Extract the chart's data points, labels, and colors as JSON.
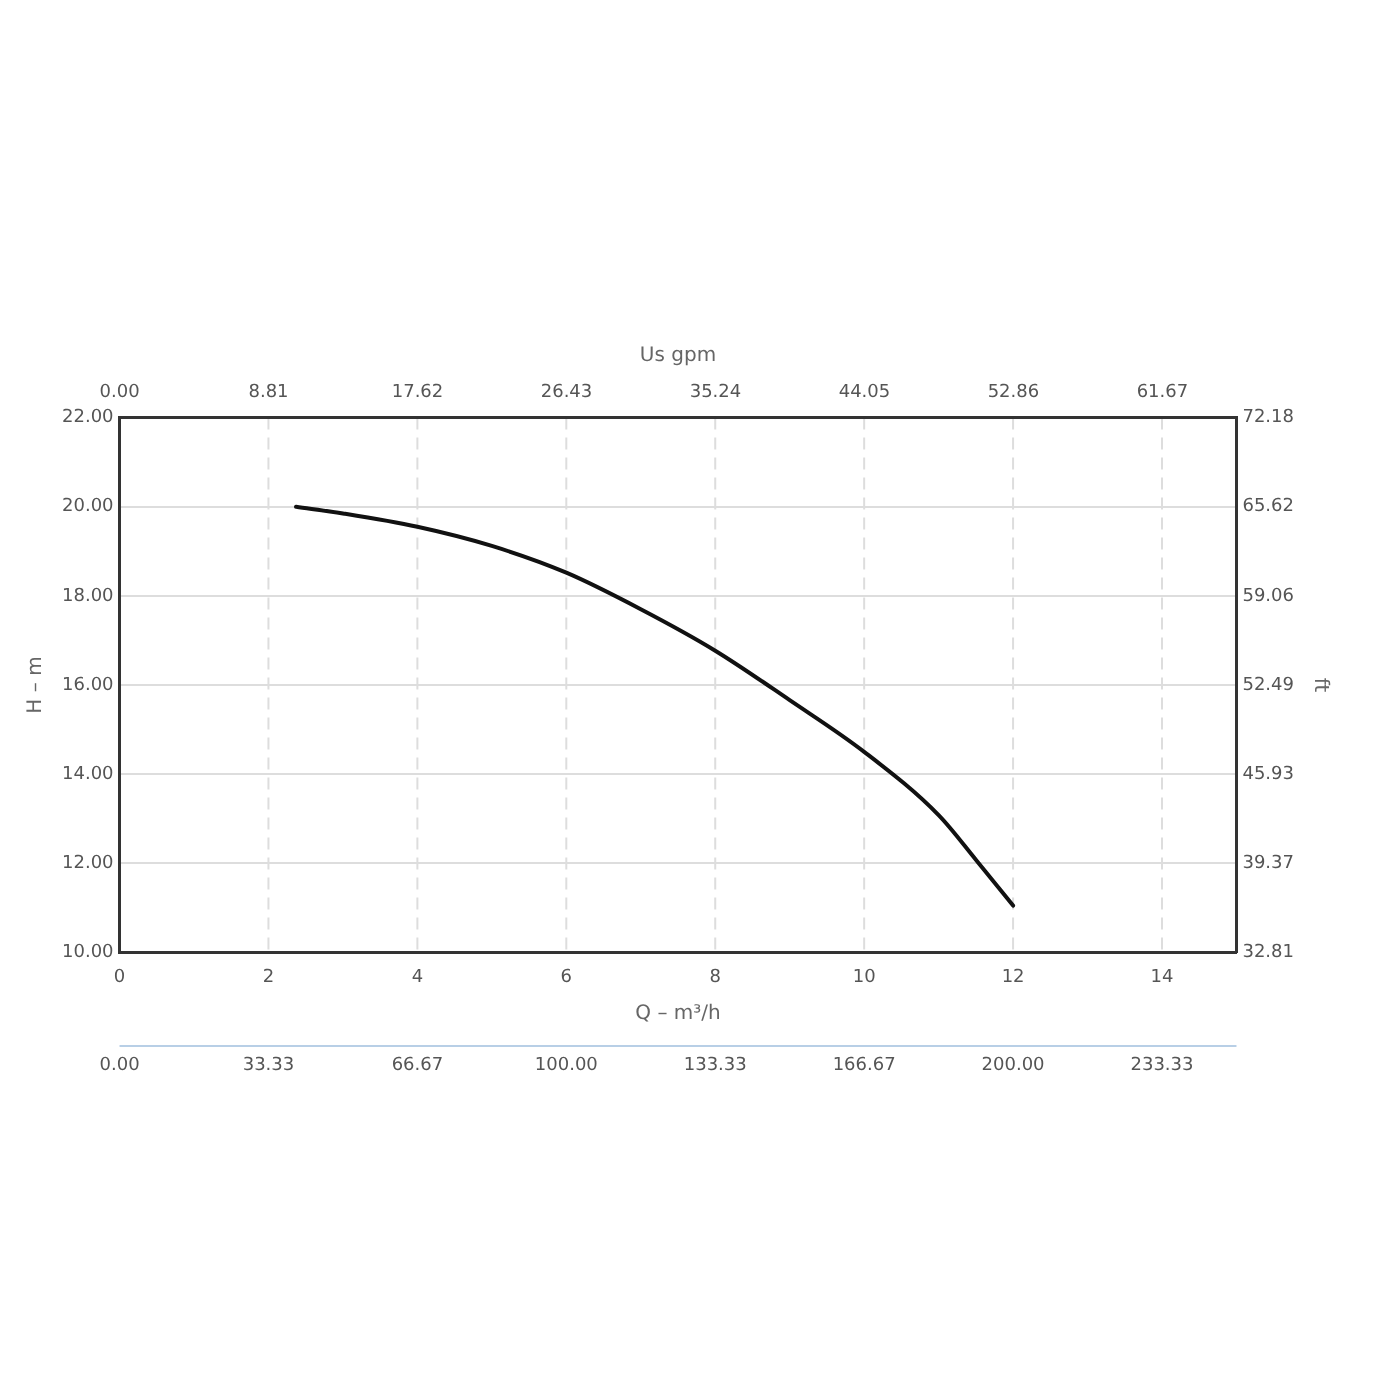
{
  "chart_data": {
    "type": "line",
    "xlabel": "Q – m³/h",
    "ylabel": "H – m",
    "x2label": "Us gpm",
    "y2label": "ft",
    "x": [
      2.37,
      3,
      4,
      5,
      6,
      7,
      8,
      9,
      10,
      11,
      11.5,
      12
    ],
    "series": [
      {
        "color": "#111111",
        "values": [
          20.0,
          19.85,
          19.55,
          19.12,
          18.52,
          17.7,
          16.77,
          15.66,
          14.5,
          13.08,
          12.08,
          11.05
        ]
      }
    ],
    "xlim": [
      0,
      15
    ],
    "xticks": [
      0,
      2,
      4,
      6,
      8,
      10,
      12,
      14
    ],
    "ylim": [
      10,
      22
    ],
    "yticks": [
      {
        "value": 10,
        "label": "10.00"
      },
      {
        "value": 12,
        "label": "12.00"
      },
      {
        "value": 14,
        "label": "14.00"
      },
      {
        "value": 16,
        "label": "16.00"
      },
      {
        "value": 18,
        "label": "18.00"
      },
      {
        "value": 20,
        "label": "20.00"
      },
      {
        "value": 22,
        "label": "22.00"
      }
    ],
    "x2lim": [
      0,
      66.05
    ],
    "x2ticks": [
      {
        "value": 0,
        "label": "0.00"
      },
      8.81,
      17.62,
      26.43,
      35.24,
      44.05,
      52.86,
      61.67
    ],
    "annotations": [
      "0.00",
      "33.33",
      "66.67",
      "100.00",
      "133.33",
      "166.67",
      "200.00",
      "233.33"
    ],
    "y2lim": [
      32.81,
      72.18
    ],
    "y2ticks": [
      32.81,
      39.37,
      45.93,
      52.49,
      59.06,
      65.62,
      72.18
    ],
    "grid": true,
    "legend": false,
    "marker": "none",
    "line_style": "solid"
  }
}
